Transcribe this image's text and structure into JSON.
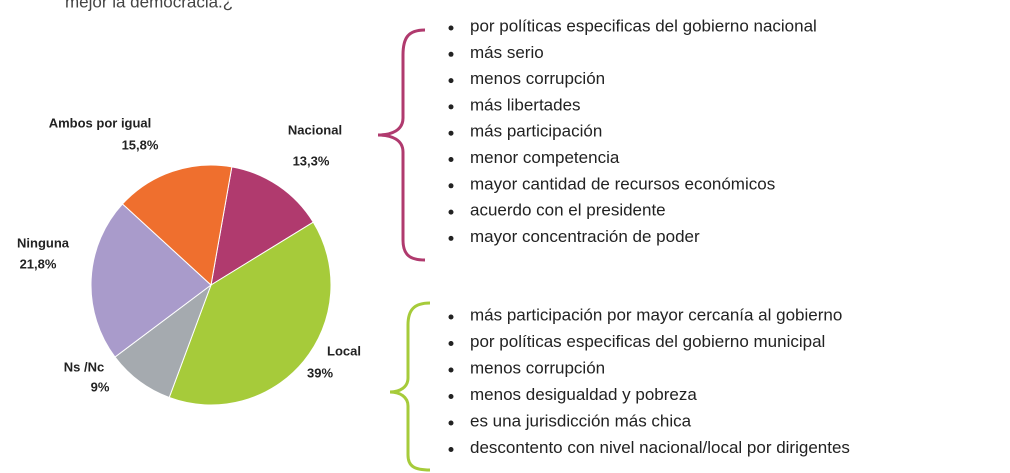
{
  "chart_data": {
    "type": "pie",
    "subtitle": "mejor la democracia.¿",
    "categories": [
      "Nacional",
      "Local",
      "Ns /Nc",
      "Ninguna",
      "Ambos por igual"
    ],
    "values": [
      13.3,
      39,
      9,
      21.8,
      15.8
    ],
    "value_labels": [
      "13,3%",
      "39%",
      "9%",
      "21,8%",
      "15,8%"
    ],
    "colors": [
      "#b03a6e",
      "#a6cb3a",
      "#a5aaaf",
      "#a99bcb",
      "#ef6f2e"
    ],
    "annotations": {
      "nacional": [
        "por políticas especificas del gobierno nacional",
        "más serio",
        "menos corrupción",
        "más libertades",
        "más participación",
        "menor competencia",
        "mayor cantidad de recursos económicos",
        "acuerdo con el presidente",
        "mayor concentración de poder"
      ],
      "local": [
        "más participación por mayor cercanía al gobierno",
        "por políticas especificas del gobierno municipal",
        "menos corrupción",
        "menos desigualdad y pobreza",
        "es una jurisdicción más chica",
        "descontento con nivel nacional/local por dirigentes"
      ]
    }
  }
}
